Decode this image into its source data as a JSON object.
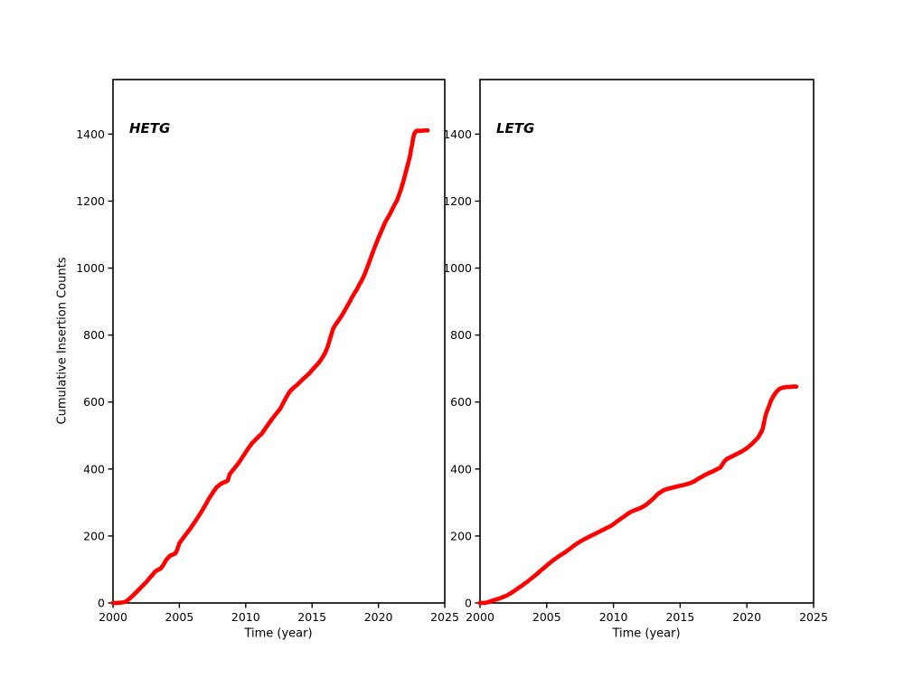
{
  "figure": {
    "background_color": "#ffffff",
    "axis_color": "#000000"
  },
  "chart_data": [
    {
      "type": "scatter",
      "name": "HETG",
      "annotation": "HETG",
      "xlabel": "Time (year)",
      "ylabel": "Cumulative Insertion Counts",
      "xlim": [
        2000,
        2025
      ],
      "ylim": [
        0,
        1563
      ],
      "xticks": [
        2000,
        2005,
        2010,
        2015,
        2020,
        2025
      ],
      "yticks": [
        0,
        200,
        400,
        600,
        800,
        1000,
        1200,
        1400
      ],
      "grid": false,
      "legend": "none",
      "marker_color": "#ff0000",
      "points": [
        [
          2000.0,
          0
        ],
        [
          2000.3,
          0
        ],
        [
          2000.6,
          1
        ],
        [
          2000.9,
          3
        ],
        [
          2001.0,
          5
        ],
        [
          2001.25,
          13
        ],
        [
          2001.5,
          22
        ],
        [
          2001.75,
          32
        ],
        [
          2002.0,
          42
        ],
        [
          2002.25,
          52
        ],
        [
          2002.5,
          62
        ],
        [
          2002.75,
          74
        ],
        [
          2003.0,
          85
        ],
        [
          2003.15,
          93
        ],
        [
          2003.3,
          97
        ],
        [
          2003.45,
          100
        ],
        [
          2003.6,
          103
        ],
        [
          2003.8,
          114
        ],
        [
          2004.0,
          128
        ],
        [
          2004.2,
          137
        ],
        [
          2004.35,
          142
        ],
        [
          2004.55,
          145
        ],
        [
          2004.7,
          148
        ],
        [
          2004.85,
          160
        ],
        [
          2005.0,
          178
        ],
        [
          2005.25,
          192
        ],
        [
          2005.5,
          205
        ],
        [
          2005.75,
          218
        ],
        [
          2006.0,
          232
        ],
        [
          2006.25,
          247
        ],
        [
          2006.5,
          262
        ],
        [
          2006.75,
          278
        ],
        [
          2007.0,
          295
        ],
        [
          2007.2,
          310
        ],
        [
          2007.4,
          322
        ],
        [
          2007.6,
          334
        ],
        [
          2007.8,
          345
        ],
        [
          2008.1,
          355
        ],
        [
          2008.3,
          359
        ],
        [
          2008.5,
          362
        ],
        [
          2008.65,
          366
        ],
        [
          2008.8,
          385
        ],
        [
          2009.0,
          395
        ],
        [
          2009.25,
          407
        ],
        [
          2009.5,
          420
        ],
        [
          2009.75,
          435
        ],
        [
          2010.0,
          450
        ],
        [
          2010.25,
          465
        ],
        [
          2010.5,
          478
        ],
        [
          2010.75,
          488
        ],
        [
          2011.0,
          498
        ],
        [
          2011.2,
          505
        ],
        [
          2011.4,
          516
        ],
        [
          2011.6,
          528
        ],
        [
          2011.8,
          539
        ],
        [
          2012.0,
          550
        ],
        [
          2012.3,
          565
        ],
        [
          2012.6,
          580
        ],
        [
          2012.8,
          595
        ],
        [
          2013.0,
          610
        ],
        [
          2013.2,
          624
        ],
        [
          2013.4,
          635
        ],
        [
          2013.65,
          644
        ],
        [
          2013.9,
          652
        ],
        [
          2014.1,
          660
        ],
        [
          2014.3,
          668
        ],
        [
          2014.5,
          675
        ],
        [
          2014.7,
          682
        ],
        [
          2014.85,
          688
        ],
        [
          2015.0,
          695
        ],
        [
          2015.15,
          702
        ],
        [
          2015.3,
          708
        ],
        [
          2015.45,
          715
        ],
        [
          2015.6,
          722
        ],
        [
          2015.8,
          734
        ],
        [
          2016.0,
          748
        ],
        [
          2016.2,
          768
        ],
        [
          2016.4,
          795
        ],
        [
          2016.6,
          820
        ],
        [
          2016.75,
          830
        ],
        [
          2016.9,
          838
        ],
        [
          2017.1,
          850
        ],
        [
          2017.3,
          862
        ],
        [
          2017.5,
          876
        ],
        [
          2017.7,
          890
        ],
        [
          2017.85,
          900
        ],
        [
          2018.0,
          912
        ],
        [
          2018.2,
          925
        ],
        [
          2018.4,
          938
        ],
        [
          2018.55,
          950
        ],
        [
          2018.7,
          960
        ],
        [
          2018.85,
          972
        ],
        [
          2019.0,
          985
        ],
        [
          2019.2,
          1006
        ],
        [
          2019.4,
          1028
        ],
        [
          2019.55,
          1044
        ],
        [
          2019.7,
          1060
        ],
        [
          2019.85,
          1075
        ],
        [
          2020.0,
          1090
        ],
        [
          2020.2,
          1108
        ],
        [
          2020.35,
          1122
        ],
        [
          2020.5,
          1136
        ],
        [
          2020.7,
          1150
        ],
        [
          2020.85,
          1160
        ],
        [
          2021.0,
          1172
        ],
        [
          2021.2,
          1188
        ],
        [
          2021.4,
          1202
        ],
        [
          2021.55,
          1218
        ],
        [
          2021.7,
          1235
        ],
        [
          2021.8,
          1248
        ],
        [
          2021.9,
          1262
        ],
        [
          2022.0,
          1277
        ],
        [
          2022.1,
          1292
        ],
        [
          2022.2,
          1307
        ],
        [
          2022.3,
          1322
        ],
        [
          2022.4,
          1338
        ],
        [
          2022.45,
          1352
        ],
        [
          2022.55,
          1370
        ],
        [
          2022.6,
          1385
        ],
        [
          2022.7,
          1400
        ],
        [
          2022.8,
          1407
        ],
        [
          2022.9,
          1410
        ],
        [
          2023.0,
          1410
        ],
        [
          2023.15,
          1410
        ],
        [
          2023.3,
          1410
        ],
        [
          2023.45,
          1411
        ],
        [
          2023.6,
          1411
        ],
        [
          2023.7,
          1411
        ]
      ]
    },
    {
      "type": "scatter",
      "name": "LETG",
      "annotation": "LETG",
      "xlabel": "Time (year)",
      "ylabel": "",
      "xlim": [
        2000,
        2025
      ],
      "ylim": [
        0,
        1563
      ],
      "xticks": [
        2000,
        2005,
        2010,
        2015,
        2020,
        2025
      ],
      "yticks": [
        0,
        200,
        400,
        600,
        800,
        1000,
        1200,
        1400
      ],
      "grid": false,
      "legend": "none",
      "marker_color": "#ff0000",
      "points": [
        [
          2000.0,
          0
        ],
        [
          2000.3,
          0
        ],
        [
          2000.6,
          2
        ],
        [
          2000.8,
          5
        ],
        [
          2001.0,
          8
        ],
        [
          2001.25,
          11
        ],
        [
          2001.5,
          14
        ],
        [
          2001.75,
          18
        ],
        [
          2002.0,
          22
        ],
        [
          2002.25,
          28
        ],
        [
          2002.5,
          34
        ],
        [
          2002.75,
          41
        ],
        [
          2003.0,
          48
        ],
        [
          2003.25,
          55
        ],
        [
          2003.5,
          62
        ],
        [
          2003.75,
          70
        ],
        [
          2004.0,
          78
        ],
        [
          2004.25,
          86
        ],
        [
          2004.5,
          95
        ],
        [
          2004.75,
          103
        ],
        [
          2005.0,
          112
        ],
        [
          2005.25,
          120
        ],
        [
          2005.5,
          128
        ],
        [
          2005.75,
          135
        ],
        [
          2006.0,
          142
        ],
        [
          2006.25,
          148
        ],
        [
          2006.5,
          155
        ],
        [
          2006.75,
          162
        ],
        [
          2007.0,
          170
        ],
        [
          2007.25,
          177
        ],
        [
          2007.5,
          183
        ],
        [
          2007.75,
          189
        ],
        [
          2008.0,
          194
        ],
        [
          2008.25,
          199
        ],
        [
          2008.5,
          204
        ],
        [
          2008.75,
          209
        ],
        [
          2009.0,
          214
        ],
        [
          2009.25,
          219
        ],
        [
          2009.5,
          224
        ],
        [
          2009.75,
          229
        ],
        [
          2010.0,
          235
        ],
        [
          2010.25,
          243
        ],
        [
          2010.5,
          250
        ],
        [
          2010.75,
          257
        ],
        [
          2011.0,
          264
        ],
        [
          2011.3,
          272
        ],
        [
          2011.6,
          277
        ],
        [
          2011.8,
          280
        ],
        [
          2012.0,
          283
        ],
        [
          2012.2,
          287
        ],
        [
          2012.4,
          292
        ],
        [
          2012.6,
          298
        ],
        [
          2012.8,
          305
        ],
        [
          2013.0,
          312
        ],
        [
          2013.2,
          320
        ],
        [
          2013.35,
          326
        ],
        [
          2013.5,
          330
        ],
        [
          2013.65,
          334
        ],
        [
          2013.8,
          337
        ],
        [
          2014.0,
          340
        ],
        [
          2014.2,
          342
        ],
        [
          2014.4,
          344
        ],
        [
          2014.6,
          346
        ],
        [
          2014.8,
          348
        ],
        [
          2015.0,
          350
        ],
        [
          2015.25,
          352
        ],
        [
          2015.5,
          355
        ],
        [
          2015.75,
          358
        ],
        [
          2016.0,
          362
        ],
        [
          2016.2,
          367
        ],
        [
          2016.4,
          372
        ],
        [
          2016.6,
          376
        ],
        [
          2016.8,
          381
        ],
        [
          2017.0,
          385
        ],
        [
          2017.2,
          389
        ],
        [
          2017.4,
          392
        ],
        [
          2017.6,
          396
        ],
        [
          2017.8,
          400
        ],
        [
          2018.0,
          404
        ],
        [
          2018.15,
          413
        ],
        [
          2018.3,
          422
        ],
        [
          2018.5,
          430
        ],
        [
          2018.65,
          433
        ],
        [
          2018.8,
          436
        ],
        [
          2019.0,
          440
        ],
        [
          2019.2,
          444
        ],
        [
          2019.4,
          448
        ],
        [
          2019.6,
          452
        ],
        [
          2019.8,
          457
        ],
        [
          2020.0,
          462
        ],
        [
          2020.2,
          469
        ],
        [
          2020.4,
          476
        ],
        [
          2020.6,
          484
        ],
        [
          2020.8,
          492
        ],
        [
          2021.0,
          505
        ],
        [
          2021.1,
          512
        ],
        [
          2021.2,
          522
        ],
        [
          2021.3,
          542
        ],
        [
          2021.4,
          560
        ],
        [
          2021.5,
          572
        ],
        [
          2021.6,
          582
        ],
        [
          2021.7,
          592
        ],
        [
          2021.8,
          604
        ],
        [
          2021.9,
          611
        ],
        [
          2022.0,
          618
        ],
        [
          2022.1,
          624
        ],
        [
          2022.2,
          630
        ],
        [
          2022.3,
          634
        ],
        [
          2022.4,
          638
        ],
        [
          2022.55,
          641
        ],
        [
          2022.7,
          643
        ],
        [
          2022.85,
          644
        ],
        [
          2023.0,
          645
        ],
        [
          2023.2,
          645
        ],
        [
          2023.4,
          646
        ],
        [
          2023.6,
          646
        ],
        [
          2023.7,
          646
        ]
      ]
    }
  ]
}
